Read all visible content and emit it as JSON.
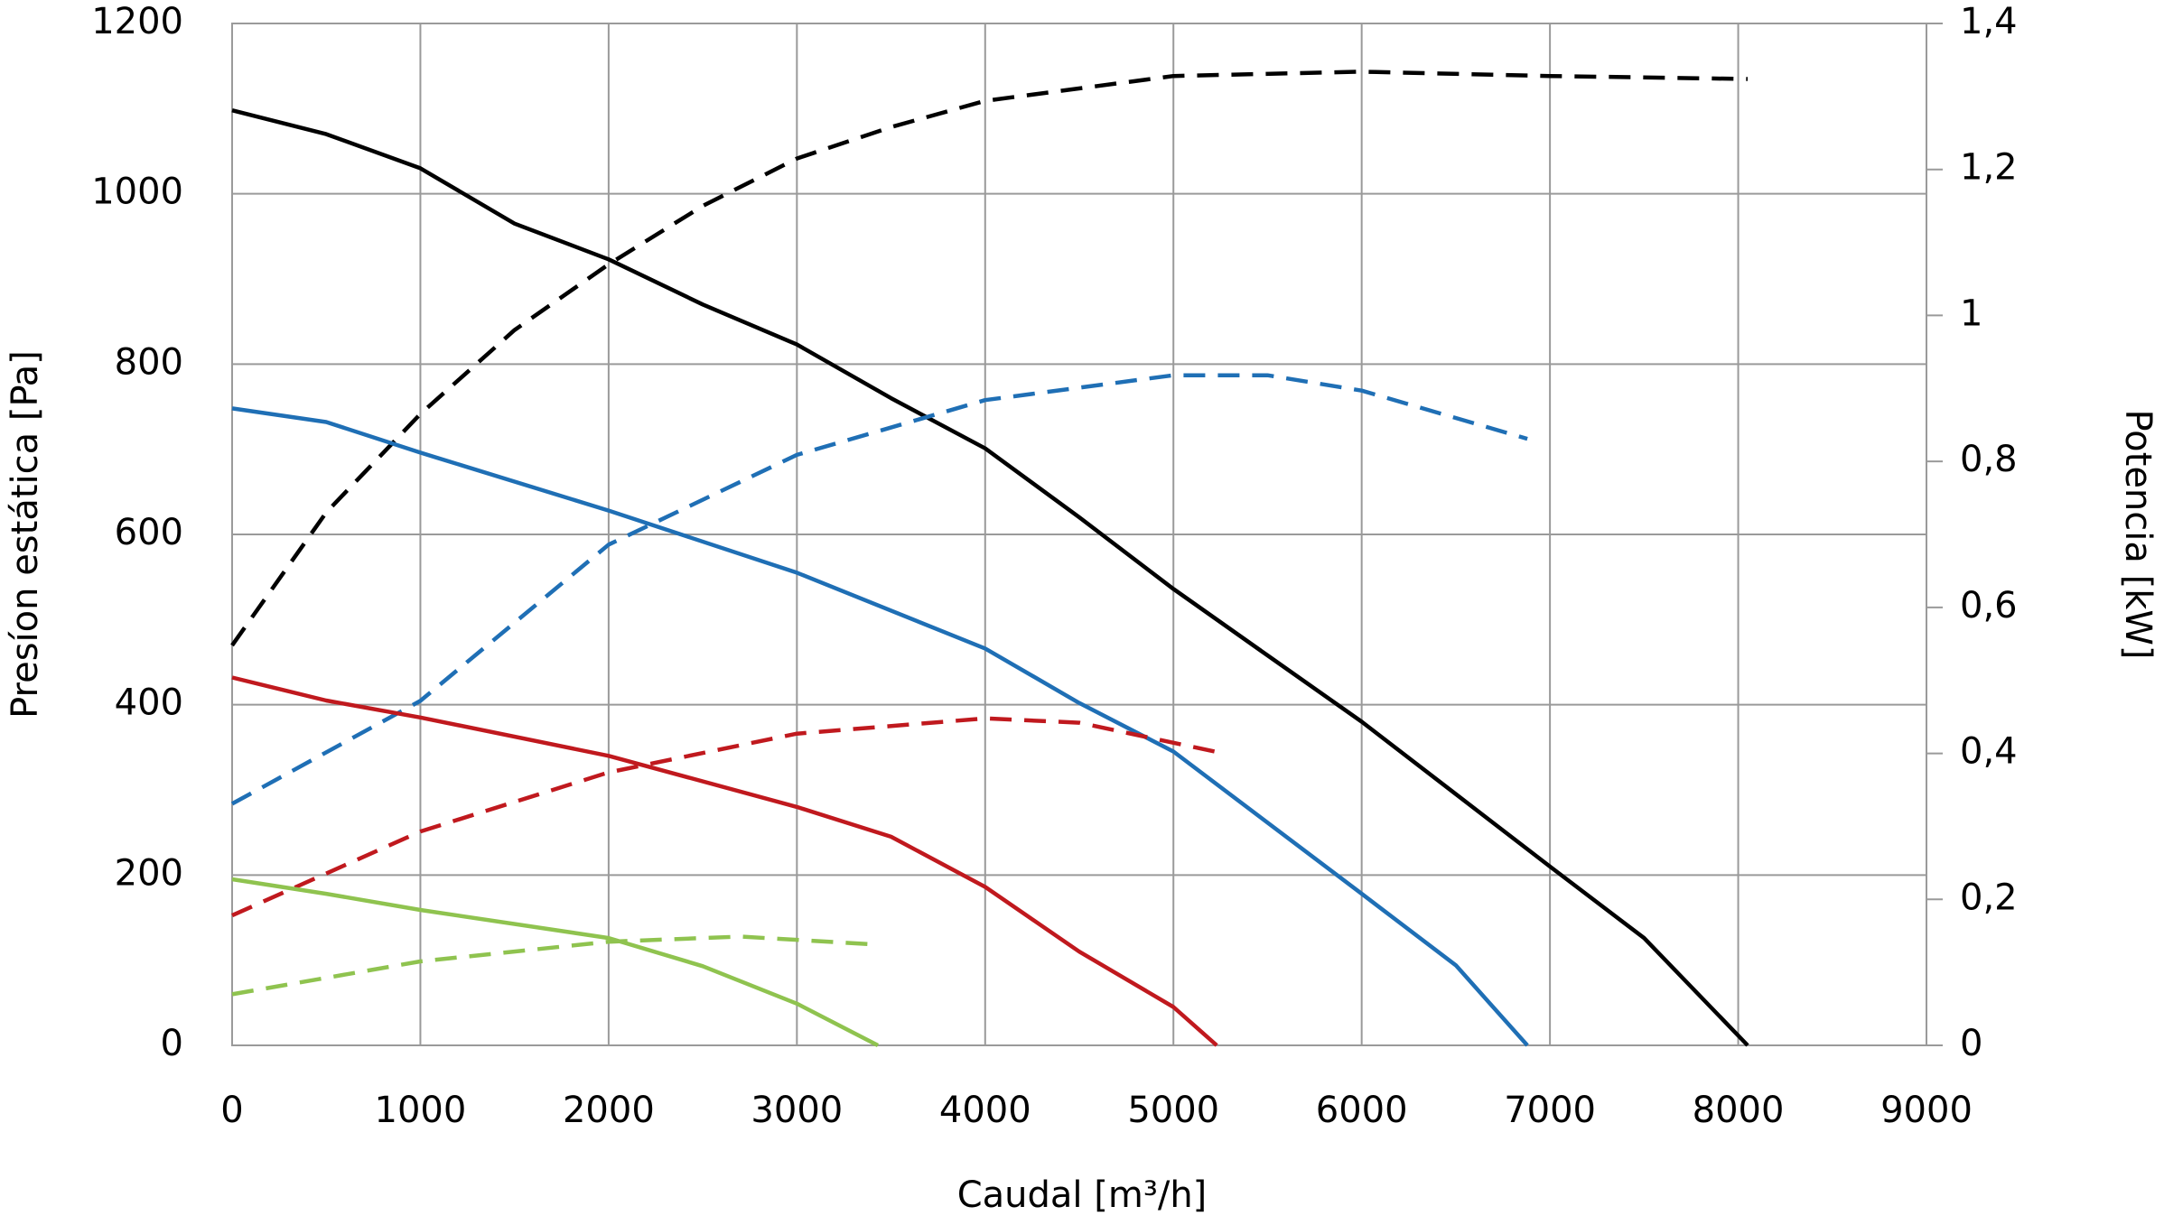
{
  "chart_data": {
    "type": "line",
    "xlabel": "Caudal [m³/h]",
    "ylabel": "Presíon estática [Pa]",
    "y2label": "Potencia [kW]",
    "xlim": [
      0,
      9000
    ],
    "xticks": [
      0,
      1000,
      2000,
      3000,
      4000,
      5000,
      6000,
      7000,
      8000,
      9000
    ],
    "ylim": [
      0,
      1200
    ],
    "yticks": [
      0,
      200,
      400,
      600,
      800,
      1000,
      1200
    ],
    "y2lim": [
      0,
      1.4
    ],
    "y2ticks": [
      0,
      {
        "value": 0.2,
        "label": "0,2"
      },
      {
        "value": 0.4,
        "label": "0,4"
      },
      {
        "value": 0.6,
        "label": "0,6"
      },
      {
        "value": 0.8,
        "label": "0,8"
      },
      1,
      {
        "value": 1.2,
        "label": "1,2"
      },
      {
        "value": 1.4,
        "label": "1,4"
      }
    ],
    "grid": true,
    "series": [
      {
        "color": "#000000",
        "dashed": false,
        "x": [
          0,
          500,
          1000,
          1500,
          2000,
          2500,
          3000,
          3500,
          4000,
          4500,
          5000,
          5500,
          6000,
          6500,
          7000,
          7500,
          8050
        ],
        "values": [
          1098,
          1070,
          1030,
          965,
          923,
          870,
          823,
          760,
          701,
          620,
          536,
          458,
          380,
          295,
          210,
          126,
          0
        ]
      },
      {
        "color": "#000000",
        "dashed": true,
        "axis": "y2",
        "x": [
          0,
          500,
          1000,
          1500,
          2000,
          2500,
          3000,
          3500,
          4000,
          5000,
          6000,
          7000,
          8050
        ],
        "values": [
          0.548,
          0.73,
          0.865,
          0.98,
          1.07,
          1.15,
          1.215,
          1.258,
          1.294,
          1.328,
          1.334,
          1.328,
          1.324
        ]
      },
      {
        "color": "#1f6fb5",
        "dashed": false,
        "x": [
          0,
          500,
          1000,
          2000,
          3000,
          4000,
          4500,
          5000,
          6000,
          6500,
          6880
        ],
        "values": [
          748,
          732,
          696,
          628,
          555,
          466,
          402,
          345,
          178,
          94,
          0
        ]
      },
      {
        "color": "#1f6fb5",
        "dashed": true,
        "axis": "y2",
        "x": [
          0,
          1000,
          2000,
          3000,
          4000,
          5000,
          5500,
          6000,
          6880
        ],
        "values": [
          0.331,
          0.472,
          0.686,
          0.809,
          0.884,
          0.918,
          0.918,
          0.897,
          0.831
        ]
      },
      {
        "color": "#c0191e",
        "dashed": false,
        "x": [
          0,
          500,
          1000,
          2000,
          3000,
          3500,
          4000,
          4500,
          5000,
          5230
        ],
        "values": [
          432,
          405,
          385,
          340,
          280,
          245,
          186,
          110,
          45,
          0
        ]
      },
      {
        "color": "#c0191e",
        "dashed": true,
        "axis": "y2",
        "x": [
          0,
          1000,
          2000,
          3000,
          4000,
          4500,
          5230
        ],
        "values": [
          0.178,
          0.293,
          0.374,
          0.427,
          0.448,
          0.442,
          0.402
        ]
      },
      {
        "color": "#8fc34f",
        "dashed": false,
        "x": [
          0,
          500,
          1000,
          2000,
          2500,
          3000,
          3430
        ],
        "values": [
          195,
          178,
          159,
          126,
          93,
          49,
          0
        ]
      },
      {
        "color": "#8fc34f",
        "dashed": true,
        "axis": "y2",
        "x": [
          0,
          1000,
          2000,
          2700,
          3430
        ],
        "values": [
          0.07,
          0.115,
          0.142,
          0.149,
          0.138
        ]
      }
    ]
  }
}
